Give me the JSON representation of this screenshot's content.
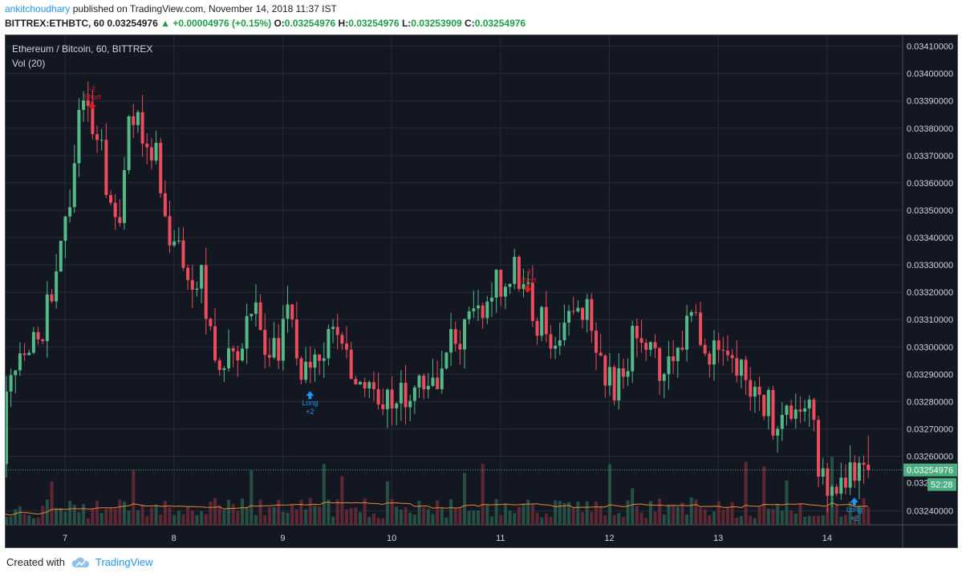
{
  "header": {
    "user": "ankitchoudhary",
    "published": " published on TradingView.com, November 14, 2018 11:37 IST",
    "symbol": "BITTREX:ETHBTC, 60",
    "last": "0.03254976",
    "change": "▲ +0.00004976 (+0.15%)",
    "o_label": "O:",
    "o_value": "0.03254976",
    "h_label": "H:",
    "h_value": "0.03254976",
    "l_label": "L:",
    "l_value": "0.03253909",
    "c_label": "C:",
    "c_value": "0.03254976"
  },
  "panel": {
    "title": "Ethereum / Bitcoin, 60, BITTREX",
    "volume_label": "Vol (20)"
  },
  "footer": {
    "created_with": "Created with",
    "brand": "TradingView"
  },
  "colors": {
    "background": "#131722",
    "up": "#53b987",
    "down": "#eb4d5c",
    "volume_ma": "#e6873b",
    "price_badge": "#4caf82",
    "short_signal": "#e01f1f",
    "long_signal": "#2196f3"
  },
  "chart_data": {
    "type": "candlestick",
    "y_axis_ticks": [
      "0.03410000",
      "0.03400000",
      "0.03390000",
      "0.03380000",
      "0.03370000",
      "0.03360000",
      "0.03350000",
      "0.03340000",
      "0.03330000",
      "0.03320000",
      "0.03310000",
      "0.03300000",
      "0.03290000",
      "0.03280000",
      "0.03270000",
      "0.03260000",
      "0.03240000"
    ],
    "ylim": [
      0.032355,
      0.03414
    ],
    "x_axis_labels": [
      "7",
      "8",
      "9",
      "10",
      "11",
      "12",
      "13",
      "14"
    ],
    "last_price_label": "0.03254976",
    "last_price": 0.03254976,
    "partial_price_label": "0.032",
    "countdown": "52:28",
    "signals": [
      {
        "type": "short",
        "top_label": "-2",
        "bottom_label": "Short",
        "day": 7.25,
        "price": 0.03387
      },
      {
        "type": "long",
        "top_label": "Long",
        "bottom_label": "+2",
        "day": 9.25,
        "price": 0.03283
      },
      {
        "type": "short",
        "top_label": "-2",
        "bottom_label": "Short",
        "day": 11.25,
        "price": 0.0332
      },
      {
        "type": "long",
        "top_label": "Long",
        "bottom_label": "+2",
        "day": 14.25,
        "price": 0.03244
      }
    ],
    "close_keypoints": [
      [
        6.45,
        0.0328
      ],
      [
        6.6,
        0.03295
      ],
      [
        6.8,
        0.03305
      ],
      [
        6.95,
        0.0334
      ],
      [
        7.05,
        0.0335
      ],
      [
        7.15,
        0.03388
      ],
      [
        7.35,
        0.03372
      ],
      [
        7.4,
        0.03355
      ],
      [
        7.5,
        0.03345
      ],
      [
        7.6,
        0.03387
      ],
      [
        7.75,
        0.0337
      ],
      [
        7.85,
        0.03375
      ],
      [
        7.95,
        0.0333
      ],
      [
        8.05,
        0.03336
      ],
      [
        8.15,
        0.03325
      ],
      [
        8.25,
        0.0333
      ],
      [
        8.35,
        0.033
      ],
      [
        8.45,
        0.0329
      ],
      [
        8.55,
        0.03295
      ],
      [
        8.65,
        0.03308
      ],
      [
        8.75,
        0.03315
      ],
      [
        8.85,
        0.03295
      ],
      [
        8.95,
        0.033
      ],
      [
        9.05,
        0.0331
      ],
      [
        9.15,
        0.03295
      ],
      [
        9.25,
        0.03285
      ],
      [
        9.35,
        0.033
      ],
      [
        9.45,
        0.03305
      ],
      [
        9.55,
        0.033
      ],
      [
        9.65,
        0.0329
      ],
      [
        9.75,
        0.03285
      ],
      [
        9.85,
        0.03287
      ],
      [
        9.95,
        0.0328
      ],
      [
        10.1,
        0.03283
      ],
      [
        10.2,
        0.03285
      ],
      [
        10.35,
        0.03283
      ],
      [
        10.5,
        0.033
      ],
      [
        10.65,
        0.03305
      ],
      [
        10.8,
        0.03313
      ],
      [
        10.95,
        0.03322
      ],
      [
        11.05,
        0.03325
      ],
      [
        11.15,
        0.0333
      ],
      [
        11.25,
        0.03318
      ],
      [
        11.35,
        0.0331
      ],
      [
        11.45,
        0.03305
      ],
      [
        11.55,
        0.03302
      ],
      [
        11.65,
        0.0331
      ],
      [
        11.75,
        0.03315
      ],
      [
        11.85,
        0.0331
      ],
      [
        11.95,
        0.0329
      ],
      [
        12.05,
        0.03285
      ],
      [
        12.15,
        0.03293
      ],
      [
        12.25,
        0.0331
      ],
      [
        12.35,
        0.03305
      ],
      [
        12.45,
        0.03295
      ],
      [
        12.55,
        0.0329
      ],
      [
        12.65,
        0.033
      ],
      [
        12.75,
        0.03312
      ],
      [
        12.85,
        0.03305
      ],
      [
        12.95,
        0.03298
      ],
      [
        13.1,
        0.03295
      ],
      [
        13.2,
        0.0329
      ],
      [
        13.3,
        0.03285
      ],
      [
        13.45,
        0.0328
      ],
      [
        13.55,
        0.03268
      ],
      [
        13.65,
        0.03278
      ],
      [
        13.75,
        0.0328
      ],
      [
        13.85,
        0.03275
      ],
      [
        13.92,
        0.03255
      ],
      [
        14.0,
        0.03245
      ],
      [
        14.1,
        0.03248
      ],
      [
        14.25,
        0.03252
      ],
      [
        14.35,
        0.03257
      ],
      [
        14.4,
        0.03255
      ]
    ]
  }
}
